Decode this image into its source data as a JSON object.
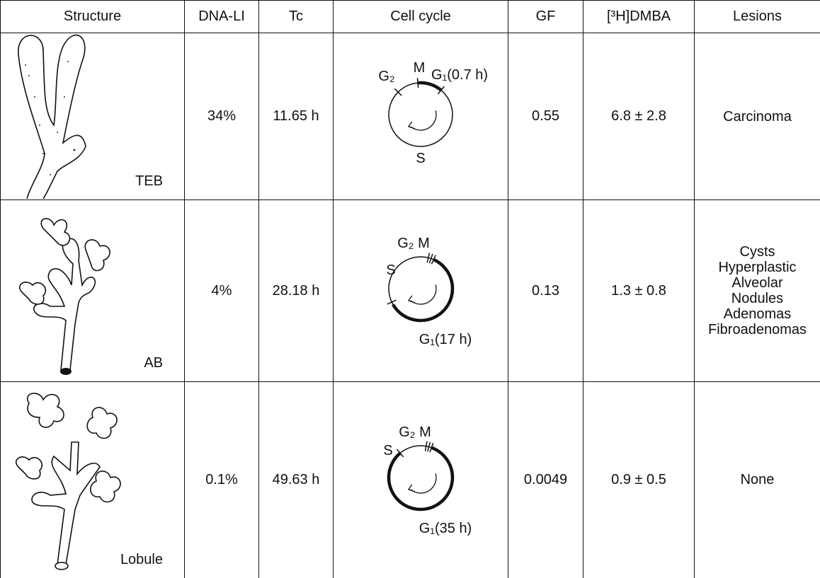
{
  "table": {
    "headers": [
      "Structure",
      "DNA-LI",
      "Tc",
      "Cell cycle",
      "GF",
      "[³H]DMBA",
      "Lesions"
    ],
    "rows": [
      {
        "structure": "TEB",
        "dna_li": "34%",
        "tc": "11.65 h",
        "cell_cycle": {
          "g2": "G₂",
          "m": "M",
          "g1": "G₁(0.7 h)",
          "s": "S"
        },
        "gf": "0.55",
        "dmba": "6.8 ± 2.8",
        "lesions": [
          "Carcinoma"
        ]
      },
      {
        "structure": "AB",
        "dna_li": "4%",
        "tc": "28.18 h",
        "cell_cycle": {
          "g2_m": "G₂ M",
          "s": "S",
          "g1": "G₁(17 h)"
        },
        "gf": "0.13",
        "dmba": "1.3 ± 0.8",
        "lesions": [
          "Cysts",
          "Hyperplastic",
          "Alveolar",
          "Nodules",
          "Adenomas",
          "Fibroadenomas"
        ]
      },
      {
        "structure": "Lobule",
        "dna_li": "0.1%",
        "tc": "49.63 h",
        "cell_cycle": {
          "s": "S",
          "g2_m": "G₂ M",
          "g1": "G₁(35 h)"
        },
        "gf": "0.0049",
        "dmba": "0.9 ± 0.5",
        "lesions": [
          "None"
        ]
      }
    ]
  }
}
